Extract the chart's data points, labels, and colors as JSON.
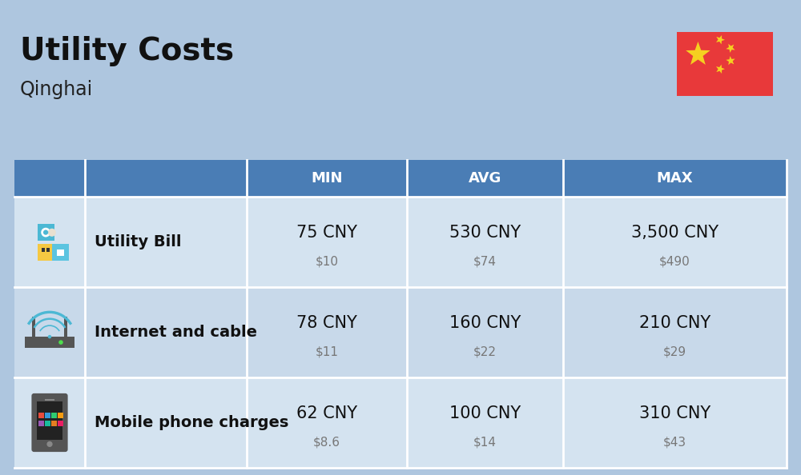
{
  "title": "Utility Costs",
  "subtitle": "Qinghai",
  "background_color": "#aec6df",
  "header_color": "#4a7db5",
  "header_text_color": "#ffffff",
  "row_color_even": "#c8d9ea",
  "row_color_odd": "#d4e3f0",
  "col_headers": [
    "MIN",
    "AVG",
    "MAX"
  ],
  "rows": [
    {
      "label": "Utility Bill",
      "min_cny": "75 CNY",
      "min_usd": "$10",
      "avg_cny": "530 CNY",
      "avg_usd": "$74",
      "max_cny": "3,500 CNY",
      "max_usd": "$490"
    },
    {
      "label": "Internet and cable",
      "min_cny": "78 CNY",
      "min_usd": "$11",
      "avg_cny": "160 CNY",
      "avg_usd": "$22",
      "max_cny": "210 CNY",
      "max_usd": "$29"
    },
    {
      "label": "Mobile phone charges",
      "min_cny": "62 CNY",
      "min_usd": "$8.6",
      "avg_cny": "100 CNY",
      "avg_usd": "$14",
      "max_cny": "310 CNY",
      "max_usd": "$43"
    }
  ],
  "flag_red": "#e8393a",
  "flag_yellow": "#f5d020",
  "cny_fontsize": 15,
  "usd_fontsize": 11,
  "label_fontsize": 14,
  "header_fontsize": 13
}
